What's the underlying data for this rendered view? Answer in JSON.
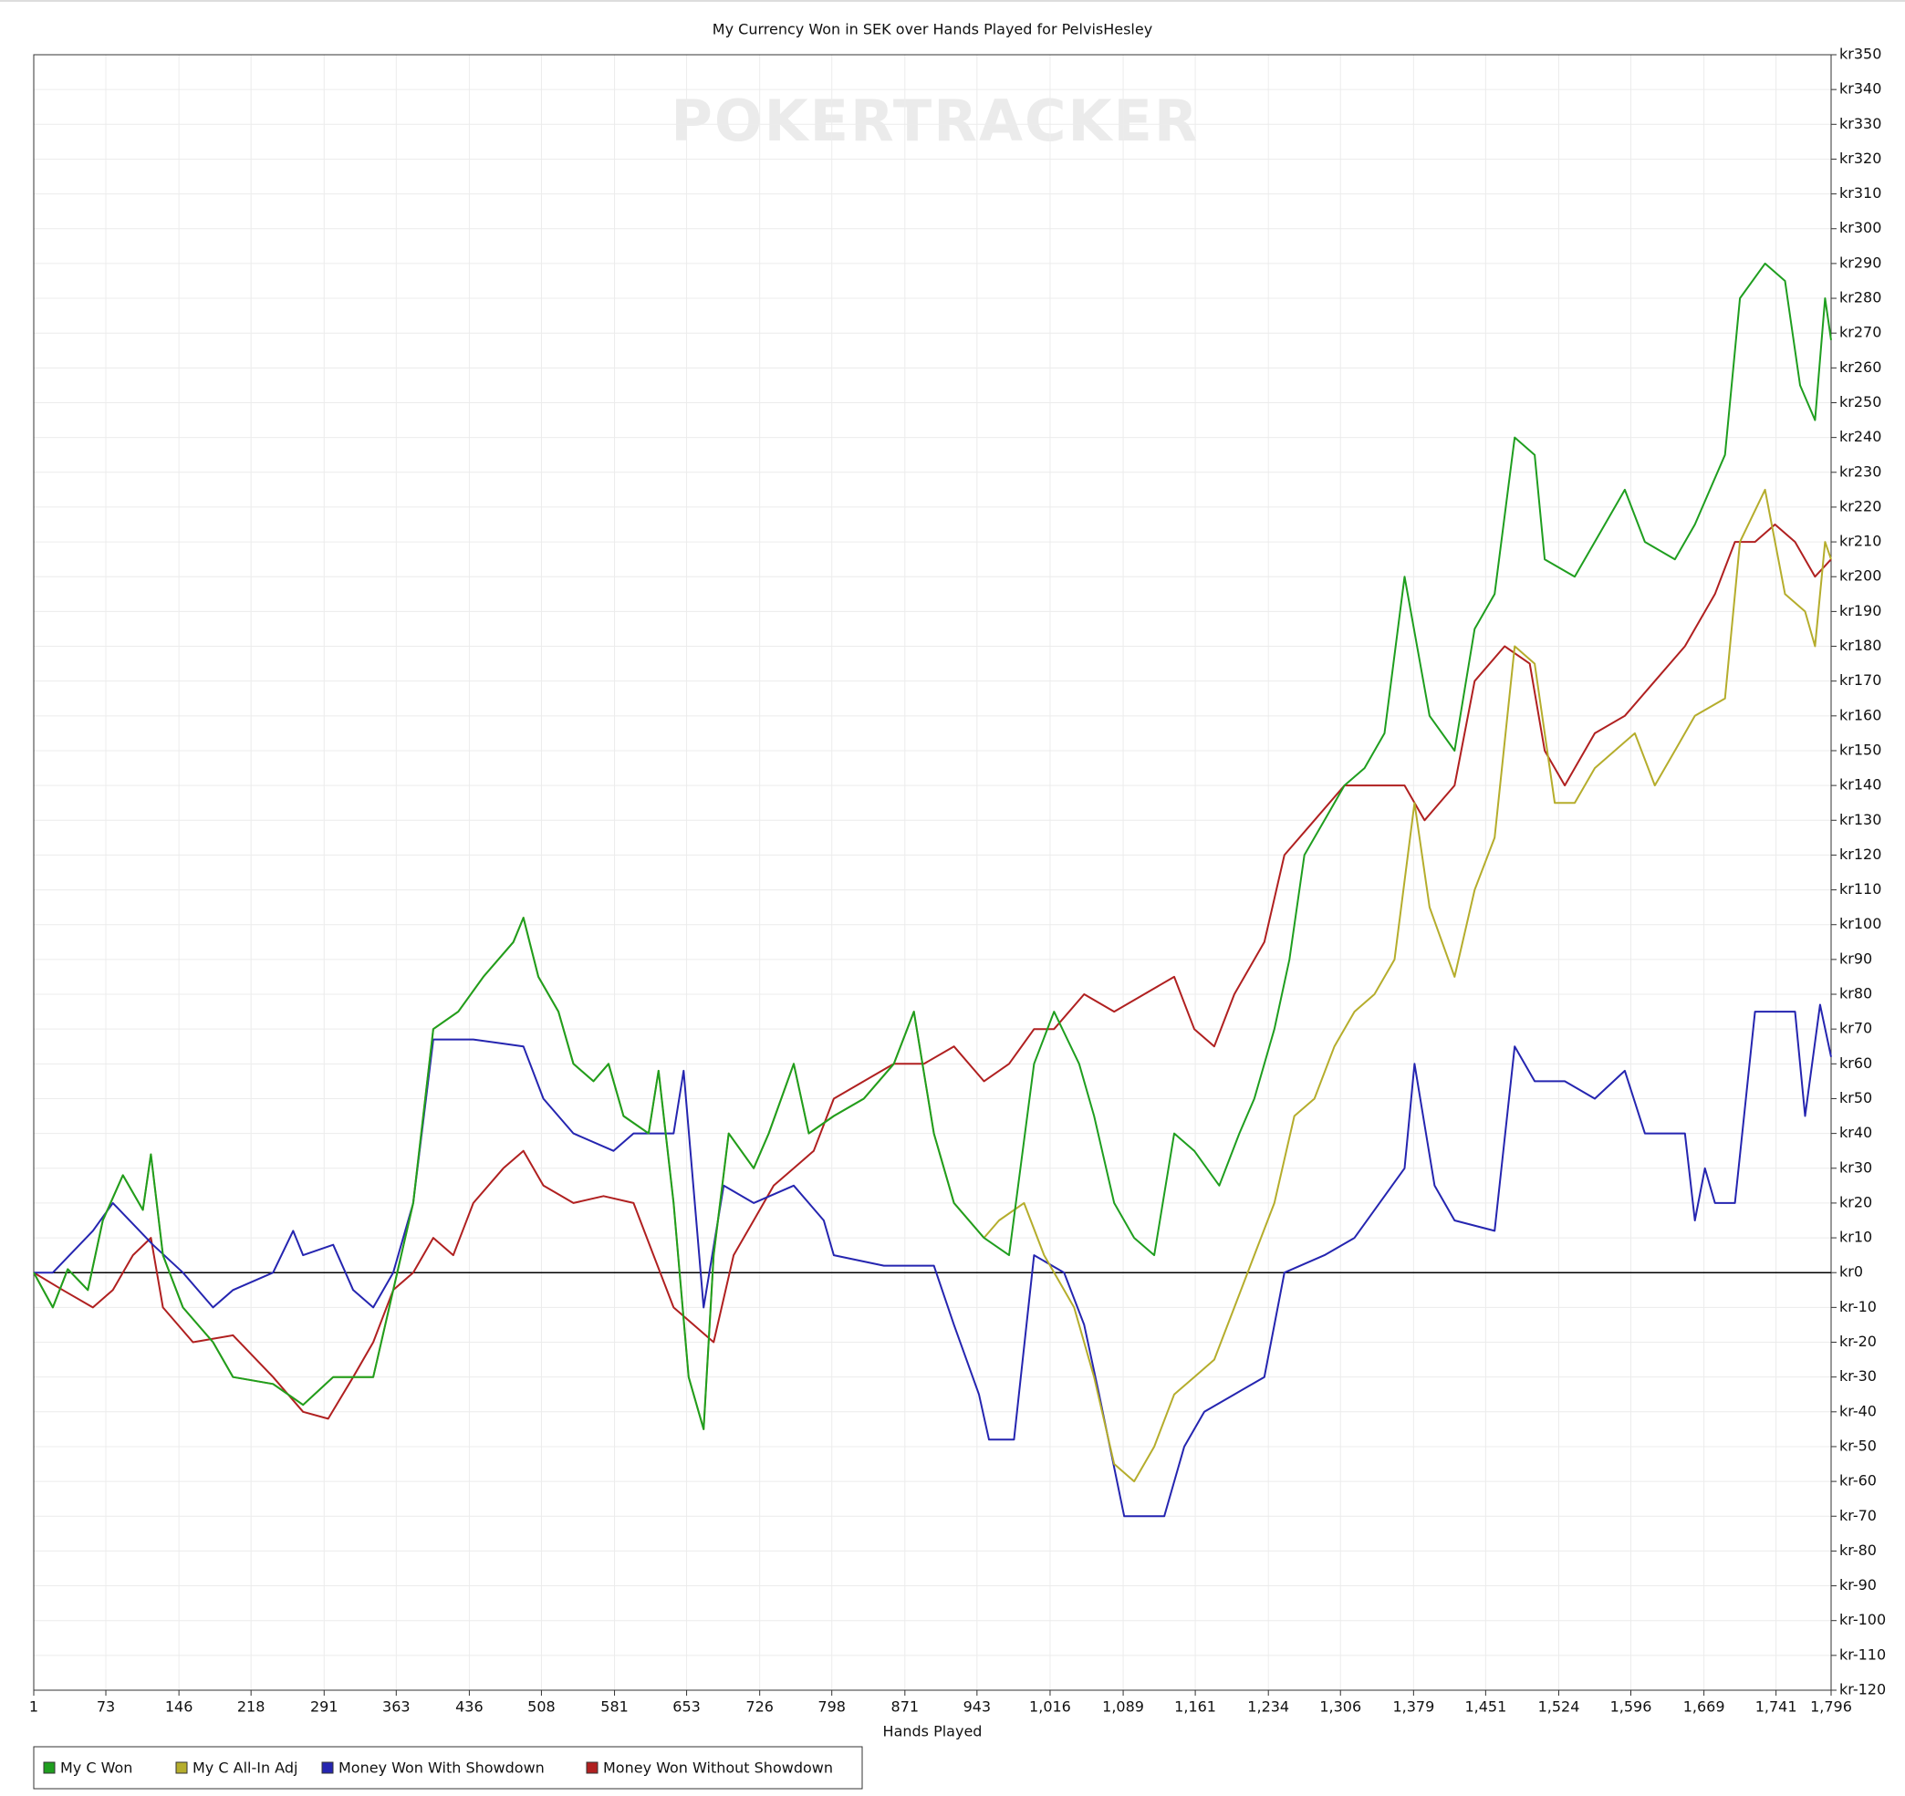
{
  "chart_data": {
    "type": "line",
    "title": "My Currency Won in SEK over Hands Played for PelvisHesley",
    "watermark": "POKERTRACKER",
    "x_label": "Hands Played",
    "xlim": [
      1,
      1796
    ],
    "ylim": [
      -120,
      350
    ],
    "zero_line": 0,
    "grid": true,
    "legend": "bottom-left",
    "xticks": [
      1,
      73,
      146,
      218,
      291,
      363,
      436,
      508,
      581,
      653,
      726,
      798,
      871,
      943,
      {
        "value": 1016,
        "label": "1,016"
      },
      {
        "value": 1089,
        "label": "1,089"
      },
      {
        "value": 1161,
        "label": "1,161"
      },
      {
        "value": 1234,
        "label": "1,234"
      },
      {
        "value": 1306,
        "label": "1,306"
      },
      {
        "value": 1379,
        "label": "1,379"
      },
      {
        "value": 1451,
        "label": "1,451"
      },
      {
        "value": 1524,
        "label": "1,524"
      },
      {
        "value": 1596,
        "label": "1,596"
      },
      {
        "value": 1669,
        "label": "1,669"
      },
      {
        "value": 1741,
        "label": "1,741"
      },
      {
        "value": 1796,
        "label": "1,796"
      }
    ],
    "yticks": [
      {
        "value": 350,
        "label": "kr350"
      },
      {
        "value": 340,
        "label": "kr340"
      },
      {
        "value": 330,
        "label": "kr330"
      },
      {
        "value": 320,
        "label": "kr320"
      },
      {
        "value": 310,
        "label": "kr310"
      },
      {
        "value": 300,
        "label": "kr300"
      },
      {
        "value": 290,
        "label": "kr290"
      },
      {
        "value": 280,
        "label": "kr280"
      },
      {
        "value": 270,
        "label": "kr270"
      },
      {
        "value": 260,
        "label": "kr260"
      },
      {
        "value": 250,
        "label": "kr250"
      },
      {
        "value": 240,
        "label": "kr240"
      },
      {
        "value": 230,
        "label": "kr230"
      },
      {
        "value": 220,
        "label": "kr220"
      },
      {
        "value": 210,
        "label": "kr210"
      },
      {
        "value": 200,
        "label": "kr200"
      },
      {
        "value": 190,
        "label": "kr190"
      },
      {
        "value": 180,
        "label": "kr180"
      },
      {
        "value": 170,
        "label": "kr170"
      },
      {
        "value": 160,
        "label": "kr160"
      },
      {
        "value": 150,
        "label": "kr150"
      },
      {
        "value": 140,
        "label": "kr140"
      },
      {
        "value": 130,
        "label": "kr130"
      },
      {
        "value": 120,
        "label": "kr120"
      },
      {
        "value": 110,
        "label": "kr110"
      },
      {
        "value": 100,
        "label": "kr100"
      },
      {
        "value": 90,
        "label": "kr90"
      },
      {
        "value": 80,
        "label": "kr80"
      },
      {
        "value": 70,
        "label": "kr70"
      },
      {
        "value": 60,
        "label": "kr60"
      },
      {
        "value": 50,
        "label": "kr50"
      },
      {
        "value": 40,
        "label": "kr40"
      },
      {
        "value": 30,
        "label": "kr30"
      },
      {
        "value": 20,
        "label": "kr20"
      },
      {
        "value": 10,
        "label": "kr10"
      },
      {
        "value": 0,
        "label": "kr0"
      },
      {
        "value": -10,
        "label": "kr-10"
      },
      {
        "value": -20,
        "label": "kr-20"
      },
      {
        "value": -30,
        "label": "kr-30"
      },
      {
        "value": -40,
        "label": "kr-40"
      },
      {
        "value": -50,
        "label": "kr-50"
      },
      {
        "value": -60,
        "label": "kr-60"
      },
      {
        "value": -70,
        "label": "kr-70"
      },
      {
        "value": -80,
        "label": "kr-80"
      },
      {
        "value": -90,
        "label": "kr-90"
      },
      {
        "value": -100,
        "label": "kr-100"
      },
      {
        "value": -110,
        "label": "kr-110"
      },
      {
        "value": -120,
        "label": "kr-120"
      }
    ],
    "series": [
      {
        "name": "My C Won",
        "color": "#1f9e1f",
        "x": [
          1,
          20,
          35,
          55,
          70,
          90,
          110,
          118,
          130,
          150,
          180,
          200,
          240,
          270,
          300,
          340,
          360,
          380,
          400,
          425,
          450,
          480,
          490,
          505,
          525,
          540,
          560,
          575,
          590,
          615,
          625,
          640,
          655,
          670,
          680,
          695,
          720,
          735,
          760,
          775,
          800,
          830,
          860,
          880,
          900,
          920,
          950,
          975,
          1000,
          1020,
          1045,
          1060,
          1080,
          1100,
          1120,
          1140,
          1160,
          1185,
          1205,
          1220,
          1240,
          1255,
          1270,
          1290,
          1310,
          1330,
          1350,
          1370,
          1395,
          1420,
          1440,
          1460,
          1480,
          1500,
          1510,
          1540,
          1570,
          1590,
          1610,
          1640,
          1660,
          1690,
          1705,
          1730,
          1750,
          1765,
          1780,
          1790,
          1796
        ],
        "values": [
          0,
          -10,
          1,
          -5,
          15,
          28,
          18,
          34,
          5,
          -10,
          -20,
          -30,
          -32,
          -38,
          -30,
          -30,
          -5,
          20,
          70,
          75,
          85,
          95,
          102,
          85,
          75,
          60,
          55,
          60,
          45,
          40,
          58,
          20,
          -30,
          -45,
          5,
          40,
          30,
          40,
          60,
          40,
          45,
          50,
          60,
          75,
          40,
          20,
          10,
          5,
          60,
          75,
          60,
          45,
          20,
          10,
          5,
          40,
          35,
          25,
          40,
          50,
          70,
          90,
          120,
          130,
          140,
          145,
          155,
          200,
          160,
          150,
          185,
          195,
          240,
          235,
          205,
          200,
          215,
          225,
          210,
          205,
          215,
          235,
          280,
          290,
          285,
          255,
          245,
          280,
          268
        ]
      },
      {
        "name": "My C All-In Adj",
        "color": "#b5ad2c",
        "x": [
          1,
          20,
          35,
          55,
          70,
          90,
          110,
          118,
          130,
          150,
          180,
          200,
          240,
          270,
          300,
          340,
          360,
          380,
          400,
          425,
          450,
          480,
          490,
          505,
          525,
          540,
          560,
          575,
          590,
          615,
          625,
          640,
          655,
          670,
          680,
          695,
          720,
          735,
          760,
          775,
          800,
          830,
          860,
          880,
          900,
          920,
          950,
          965,
          990,
          1010,
          1040,
          1060,
          1080,
          1100,
          1120,
          1140,
          1160,
          1180,
          1200,
          1220,
          1240,
          1260,
          1280,
          1300,
          1320,
          1340,
          1360,
          1380,
          1395,
          1420,
          1440,
          1460,
          1480,
          1500,
          1520,
          1540,
          1560,
          1580,
          1600,
          1620,
          1640,
          1660,
          1690,
          1705,
          1730,
          1750,
          1770,
          1780,
          1790,
          1796
        ],
        "values": [
          0,
          -10,
          1,
          -5,
          15,
          28,
          18,
          34,
          5,
          -10,
          -20,
          -30,
          -32,
          -38,
          -30,
          -30,
          -5,
          20,
          70,
          75,
          85,
          95,
          102,
          85,
          75,
          60,
          55,
          60,
          45,
          40,
          58,
          20,
          -30,
          -45,
          5,
          40,
          30,
          40,
          60,
          40,
          45,
          50,
          60,
          75,
          40,
          20,
          10,
          15,
          20,
          5,
          -10,
          -30,
          -55,
          -60,
          -50,
          -35,
          -30,
          -25,
          -10,
          5,
          20,
          45,
          50,
          65,
          75,
          80,
          90,
          135,
          105,
          85,
          110,
          125,
          180,
          175,
          135,
          135,
          145,
          150,
          155,
          140,
          150,
          160,
          165,
          210,
          225,
          195,
          190,
          180,
          210,
          205
        ]
      },
      {
        "name": "Money Won With Showdown",
        "color": "#2525b0",
        "x": [
          1,
          20,
          60,
          80,
          120,
          150,
          180,
          200,
          240,
          260,
          270,
          300,
          320,
          340,
          360,
          380,
          400,
          440,
          490,
          510,
          540,
          580,
          600,
          640,
          650,
          670,
          690,
          720,
          760,
          790,
          800,
          850,
          900,
          920,
          945,
          955,
          980,
          1000,
          1030,
          1050,
          1065,
          1090,
          1130,
          1150,
          1170,
          1200,
          1230,
          1250,
          1290,
          1320,
          1370,
          1380,
          1400,
          1420,
          1460,
          1480,
          1500,
          1530,
          1560,
          1590,
          1610,
          1650,
          1660,
          1670,
          1680,
          1700,
          1720,
          1760,
          1770,
          1785,
          1796
        ],
        "values": [
          0,
          0,
          12,
          20,
          8,
          0,
          -10,
          -5,
          0,
          12,
          5,
          8,
          -5,
          -10,
          0,
          20,
          67,
          67,
          65,
          50,
          40,
          35,
          40,
          40,
          58,
          -10,
          25,
          20,
          25,
          15,
          5,
          2,
          2,
          -15,
          -35,
          -48,
          -48,
          5,
          0,
          -15,
          -35,
          -70,
          -70,
          -50,
          -40,
          -35,
          -30,
          0,
          5,
          10,
          30,
          60,
          25,
          15,
          12,
          65,
          55,
          55,
          50,
          58,
          40,
          40,
          15,
          30,
          20,
          20,
          75,
          75,
          45,
          77,
          62
        ]
      },
      {
        "name": "Money Won Without Showdown",
        "color": "#b02020",
        "x": [
          1,
          30,
          60,
          80,
          100,
          118,
          130,
          160,
          200,
          240,
          270,
          295,
          320,
          340,
          360,
          380,
          400,
          420,
          440,
          470,
          490,
          510,
          540,
          570,
          600,
          620,
          640,
          660,
          680,
          700,
          720,
          740,
          760,
          780,
          800,
          830,
          860,
          890,
          920,
          950,
          975,
          1000,
          1020,
          1050,
          1080,
          1110,
          1140,
          1160,
          1180,
          1200,
          1230,
          1250,
          1280,
          1310,
          1340,
          1370,
          1390,
          1420,
          1440,
          1470,
          1495,
          1510,
          1530,
          1560,
          1590,
          1620,
          1650,
          1680,
          1700,
          1720,
          1740,
          1760,
          1780,
          1796
        ],
        "values": [
          0,
          -5,
          -10,
          -5,
          5,
          10,
          -10,
          -20,
          -18,
          -30,
          -40,
          -42,
          -30,
          -20,
          -5,
          0,
          10,
          5,
          20,
          30,
          35,
          25,
          20,
          22,
          20,
          5,
          -10,
          -15,
          -20,
          5,
          15,
          25,
          30,
          35,
          50,
          55,
          60,
          60,
          65,
          55,
          60,
          70,
          70,
          80,
          75,
          80,
          85,
          70,
          65,
          80,
          95,
          120,
          130,
          140,
          140,
          140,
          130,
          140,
          170,
          180,
          175,
          150,
          140,
          155,
          160,
          170,
          180,
          195,
          210,
          210,
          215,
          210,
          200,
          205
        ]
      }
    ]
  }
}
